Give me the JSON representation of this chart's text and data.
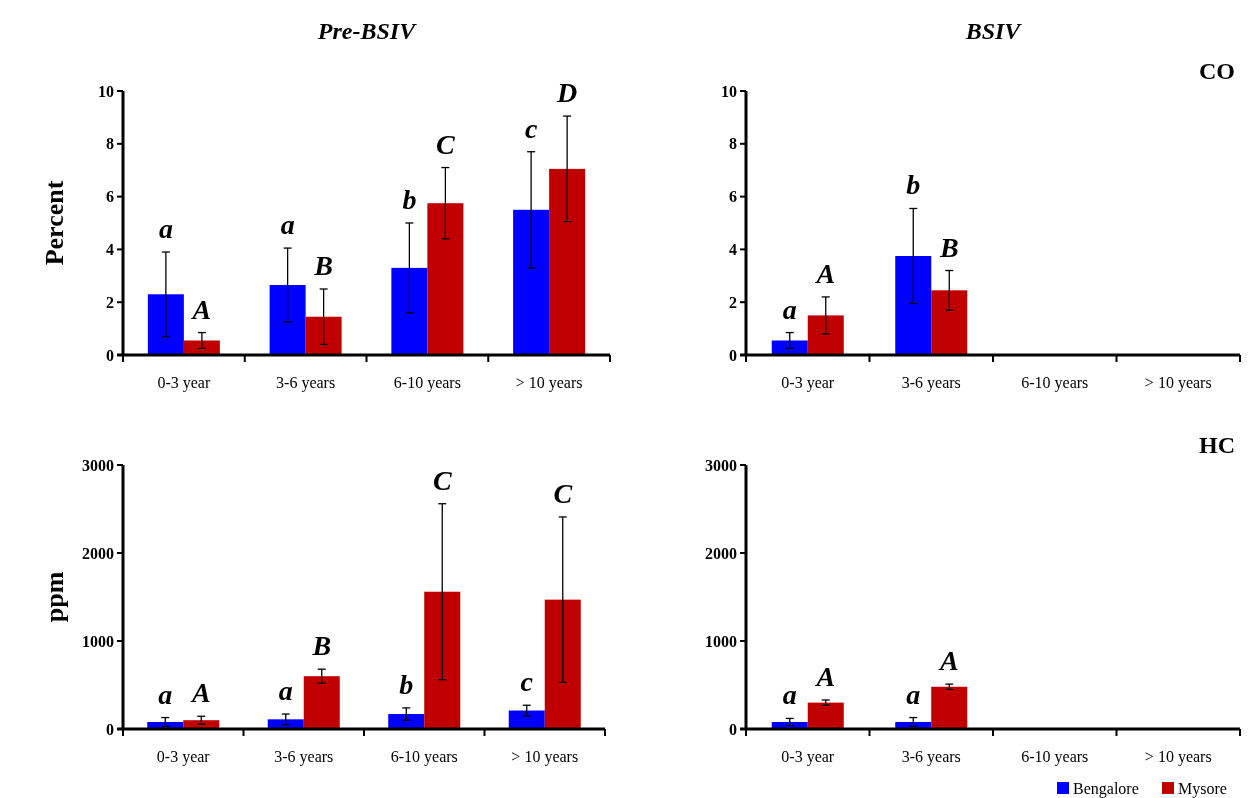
{
  "chart_data": [
    {
      "type": "bar",
      "title": "Pre-BSIV",
      "ylabel": "Percent",
      "categories": [
        "0-3 year",
        "3-6 years",
        "6-10 years",
        "> 10 years"
      ],
      "ylim": [
        0,
        10
      ],
      "yticks": [
        0,
        2,
        4,
        6,
        8,
        10
      ],
      "grid": false,
      "series": [
        {
          "color": "#0000ff",
          "values": [
            2.3,
            2.65,
            3.3,
            5.5
          ],
          "errors": [
            1.6,
            1.4,
            1.7,
            2.2
          ]
        },
        {
          "color": "#c00000",
          "values": [
            0.55,
            1.45,
            5.75,
            7.05
          ],
          "errors": [
            0.3,
            1.05,
            1.35,
            2.0
          ]
        }
      ],
      "annotations": [
        "a",
        "A",
        "a",
        "B",
        "b",
        "C",
        "c",
        "D"
      ]
    },
    {
      "type": "bar",
      "title": "BSIV",
      "subtitle": "CO",
      "categories": [
        "0-3 year",
        "3-6 years",
        "6-10 years",
        "> 10 years"
      ],
      "ylim": [
        0,
        10
      ],
      "yticks": [
        0,
        2,
        4,
        6,
        8,
        10
      ],
      "grid": false,
      "series": [
        {
          "color": "#0000ff",
          "values": [
            0.55,
            3.75,
            null,
            null
          ],
          "errors": [
            0.3,
            1.8,
            null,
            null
          ]
        },
        {
          "color": "#c00000",
          "values": [
            1.5,
            2.45,
            null,
            null
          ],
          "errors": [
            0.7,
            0.75,
            null,
            null
          ]
        }
      ],
      "annotations": [
        "a",
        "A",
        "b",
        "B"
      ]
    },
    {
      "type": "bar",
      "ylabel": "ppm",
      "categories": [
        "0-3 year",
        "3-6 years",
        "6-10 years",
        "> 10 years"
      ],
      "ylim": [
        0,
        3000
      ],
      "yticks": [
        0,
        1000,
        2000,
        3000
      ],
      "grid": false,
      "series": [
        {
          "color": "#0000ff",
          "values": [
            80,
            110,
            170,
            210
          ],
          "errors": [
            50,
            60,
            70,
            60
          ]
        },
        {
          "color": "#c00000",
          "values": [
            100,
            600,
            1560,
            1470
          ],
          "errors": [
            45,
            80,
            1000,
            940
          ]
        }
      ],
      "annotations": [
        "a",
        "A",
        "a",
        "B",
        "b",
        "C",
        "c",
        "C"
      ]
    },
    {
      "type": "bar",
      "subtitle": "HC",
      "categories": [
        "0-3 year",
        "3-6 years",
        "6-10 years",
        "> 10 years"
      ],
      "ylim": [
        0,
        3000
      ],
      "yticks": [
        0,
        1000,
        2000,
        3000
      ],
      "grid": false,
      "legend": "bottom right",
      "series": [
        {
          "name": "Bengalore",
          "color": "#0000ff",
          "values": [
            80,
            80,
            null,
            null
          ],
          "errors": [
            40,
            50,
            null,
            null
          ]
        },
        {
          "name": "Mysore",
          "color": "#c00000",
          "values": [
            300,
            480,
            null,
            null
          ],
          "errors": [
            30,
            30,
            null,
            null
          ]
        }
      ],
      "annotations": [
        "a",
        "A",
        "a",
        "A"
      ]
    }
  ]
}
